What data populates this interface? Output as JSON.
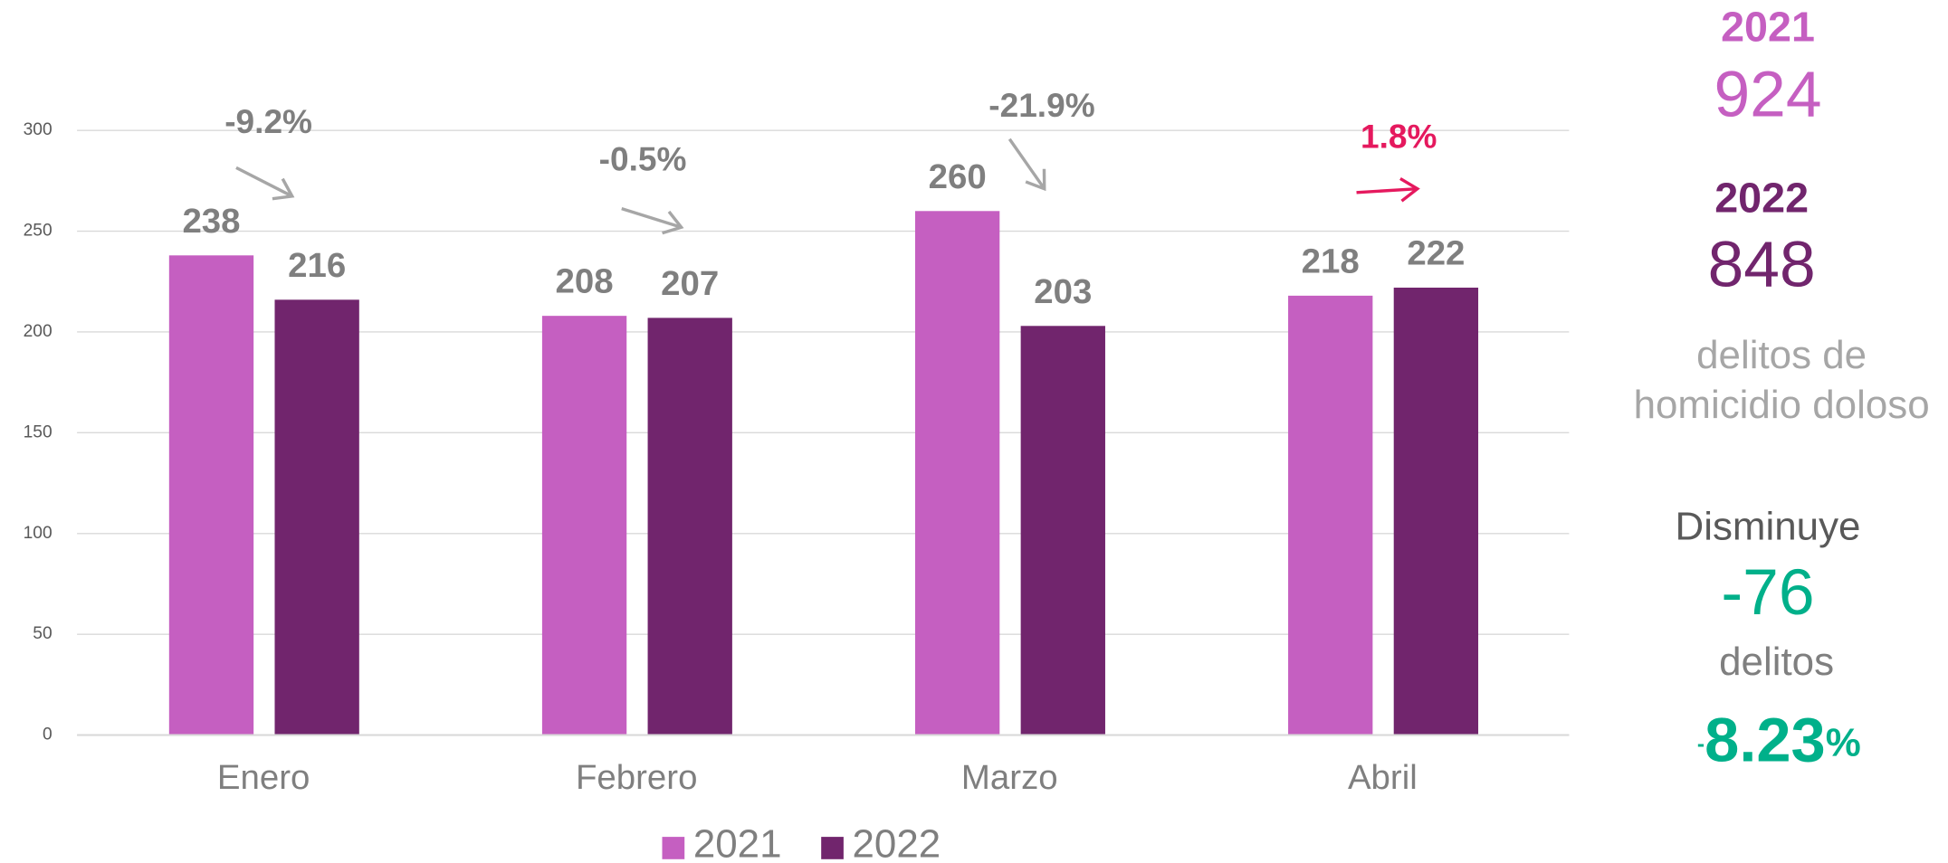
{
  "chart_data": {
    "type": "bar",
    "categories": [
      "Enero",
      "Febrero",
      "Marzo",
      "Abril"
    ],
    "series": [
      {
        "name": "2021",
        "color": "#c55fc1",
        "values": [
          238,
          208,
          260,
          218
        ]
      },
      {
        "name": "2022",
        "color": "#71256d",
        "values": [
          216,
          207,
          203,
          222
        ]
      }
    ],
    "ylim": [
      0,
      300
    ],
    "yticks": [
      0,
      50,
      100,
      150,
      200,
      250,
      300
    ],
    "grid": true,
    "legend": "bottom",
    "changes": [
      "-9.2%",
      "-0.5%",
      "-21.9%",
      "1.8%"
    ],
    "change_colors": [
      "#7f7f7f",
      "#7f7f7f",
      "#7f7f7f",
      "#e5195e"
    ],
    "arrow_colors": [
      "#a6a6a6",
      "#a6a6a6",
      "#a6a6a6",
      "#e5195e"
    ]
  },
  "summary": {
    "year_a": "2021",
    "total_a": "924",
    "year_b": "2022",
    "total_b": "848",
    "description": [
      "delitos de",
      "homicidio doloso"
    ],
    "trend": "Disminuye",
    "difference": "-76",
    "unit": "delitos",
    "percent": {
      "sign": "-",
      "value": "8.23",
      "unit": "%"
    }
  }
}
